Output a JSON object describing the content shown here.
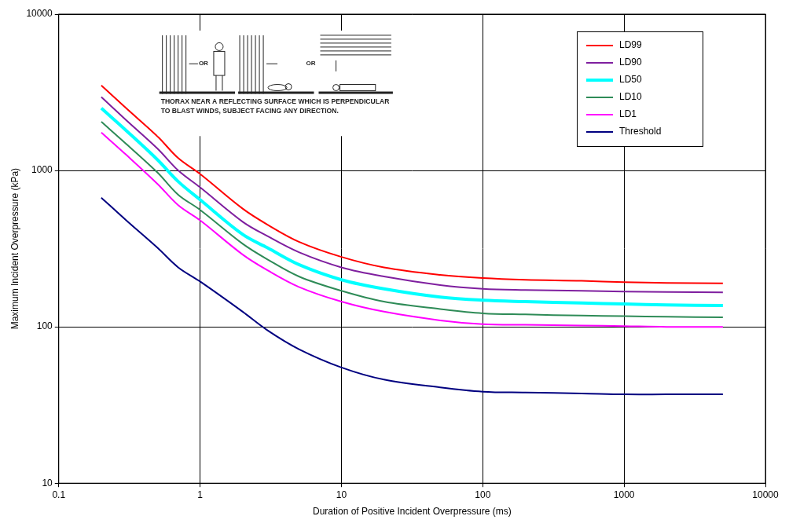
{
  "chart_data": {
    "type": "line",
    "x_label": "Duration of Positive Incident Overpressure (ms)",
    "y_label": "Maximum Incident Overpressure (kPa)",
    "log": true,
    "grid": true,
    "legend": "upper right",
    "xlim": [
      0.1,
      10000
    ],
    "xticks": [
      0.1,
      1,
      10,
      100,
      1000,
      10000
    ],
    "ylim": [
      10,
      10000
    ],
    "yticks": [
      10,
      100,
      1000,
      10000
    ],
    "annotations": {
      "diagram_labels": [
        "OR",
        "OR"
      ],
      "caption": [
        "THORAX NEAR A REFLECTING SURFACE WHICH IS PERPENDICULAR",
        "TO BLAST WINDS, SUBJECT FACING ANY DIRECTION."
      ]
    },
    "x": [
      0.2,
      0.3,
      0.5,
      0.7,
      1,
      2,
      3,
      5,
      10,
      20,
      50,
      100,
      200,
      500,
      1000,
      2000,
      5000
    ],
    "series": [
      {
        "name": "LD99",
        "color": "#ff0000",
        "values": [
          3500,
          2500,
          1650,
          1200,
          950,
          570,
          450,
          350,
          280,
          240,
          215,
          205,
          200,
          197,
          193,
          191,
          190
        ]
      },
      {
        "name": "LD90",
        "color": "#7f1f9f",
        "values": [
          2950,
          2100,
          1380,
          1000,
          780,
          470,
          380,
          300,
          240,
          210,
          185,
          175,
          172,
          170,
          168,
          167,
          166
        ]
      },
      {
        "name": "LD50",
        "color": "#00ffff",
        "values": [
          2500,
          1800,
          1170,
          850,
          650,
          390,
          320,
          250,
          200,
          175,
          155,
          148,
          145,
          142,
          140,
          138,
          137
        ]
      },
      {
        "name": "LD10",
        "color": "#2e8b57",
        "values": [
          2050,
          1480,
          970,
          700,
          560,
          340,
          270,
          210,
          170,
          145,
          130,
          122,
          120,
          118,
          117,
          116,
          115
        ]
      },
      {
        "name": "LD1",
        "color": "#ff00ff",
        "values": [
          1750,
          1260,
          820,
          600,
          480,
          290,
          230,
          180,
          145,
          125,
          110,
          104,
          103,
          102,
          101,
          100,
          100
        ]
      },
      {
        "name": "Threshold",
        "color": "#000080",
        "values": [
          670,
          480,
          320,
          240,
          195,
          125,
          95,
          72,
          55,
          46,
          41,
          38.5,
          38,
          37.5,
          37,
          37,
          37
        ]
      }
    ]
  }
}
